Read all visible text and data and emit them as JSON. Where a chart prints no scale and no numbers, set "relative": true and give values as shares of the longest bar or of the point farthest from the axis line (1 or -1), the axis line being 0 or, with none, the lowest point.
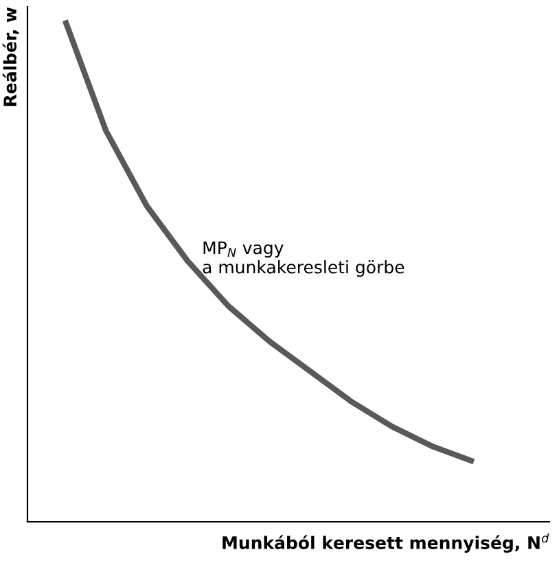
{
  "chart_data": {
    "type": "line",
    "relative": true,
    "xlabel": "Munkából keresett mennyiség, N$^{d}$",
    "ylabel": "Reálbér, w",
    "annotations": [
      "MP$_{N}$ vagy\na munkakeresleti görbe"
    ],
    "categories": [
      null,
      null,
      null,
      null,
      null,
      null,
      null,
      null,
      null,
      null,
      null
    ],
    "series": [
      {
        "color": "#58595b",
        "values": [
          1,
          0.78,
          0.63,
          0.52,
          0.43,
          0.36,
          0.3,
          0.24,
          0.19,
          0.15,
          0.12
        ]
      }
    ]
  }
}
